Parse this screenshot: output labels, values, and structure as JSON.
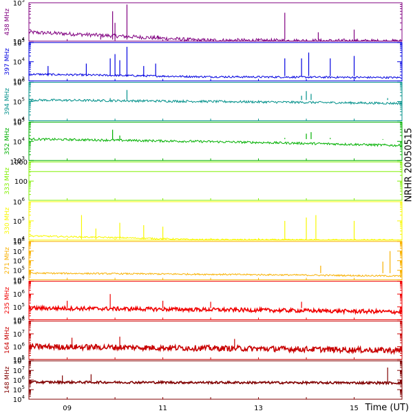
{
  "chart_data": {
    "type": "line",
    "xlabel": "Time (UT)",
    "side_label": "NRHR 20050515",
    "x_ticks": [
      "09",
      "11",
      "13",
      "15"
    ],
    "x_range": [
      8.2,
      16.0
    ],
    "panels": [
      {
        "label": "438 MHz",
        "color": "#800080",
        "y_scale": "log",
        "ylim": [
          10000,
          100000
        ],
        "y_ticks": [
          {
            "v": 100000,
            "base": "10",
            "exp": "5"
          },
          {
            "v": 10000,
            "base": "10",
            "exp": "4"
          }
        ],
        "baseline": 11000,
        "baseline_end": 10000,
        "noise": 0.05,
        "decay": 0.55,
        "spikes": [
          {
            "t": 9.95,
            "v": 60000
          },
          {
            "t": 10.25,
            "v": 90000
          },
          {
            "t": 10.0,
            "v": 30000
          },
          {
            "t": 9.7,
            "v": 14000
          },
          {
            "t": 10.9,
            "v": 14000
          },
          {
            "t": 13.55,
            "v": 55000
          },
          {
            "t": 14.25,
            "v": 17000
          },
          {
            "t": 15.0,
            "v": 20000
          }
        ]
      },
      {
        "label": "397 MHz",
        "color": "#0000e0",
        "y_scale": "log",
        "ylim": [
          1000,
          100000
        ],
        "y_ticks": [
          {
            "v": 100000,
            "base": "10",
            "exp": "5"
          },
          {
            "v": 10000,
            "base": "10",
            "exp": "4"
          },
          {
            "v": 1000,
            "base": "10",
            "exp": "3"
          }
        ],
        "baseline": 1800,
        "baseline_end": 1500,
        "noise": 0.05,
        "decay": 0.25,
        "spikes": [
          {
            "t": 8.6,
            "v": 6000
          },
          {
            "t": 9.4,
            "v": 8000
          },
          {
            "t": 9.9,
            "v": 15000
          },
          {
            "t": 10.0,
            "v": 25000
          },
          {
            "t": 10.1,
            "v": 12000
          },
          {
            "t": 10.25,
            "v": 60000
          },
          {
            "t": 10.6,
            "v": 6000
          },
          {
            "t": 10.85,
            "v": 8000
          },
          {
            "t": 13.55,
            "v": 15000
          },
          {
            "t": 13.9,
            "v": 15000
          },
          {
            "t": 14.05,
            "v": 30000
          },
          {
            "t": 14.5,
            "v": 15000
          },
          {
            "t": 15.0,
            "v": 20000
          }
        ]
      },
      {
        "label": "394 MHz",
        "color": "#00908a",
        "y_scale": "log",
        "ylim": [
          10000,
          1000000
        ],
        "y_ticks": [
          {
            "v": 1000000,
            "base": "10",
            "exp": "6"
          },
          {
            "v": 100000,
            "base": "10",
            "exp": "5"
          },
          {
            "v": 10000,
            "base": "10",
            "exp": "4"
          }
        ],
        "baseline": 120000,
        "baseline_end": 80000,
        "noise": 0.06,
        "decay": 0,
        "spikes": [
          {
            "t": 9.9,
            "v": 150000
          },
          {
            "t": 10.25,
            "v": 400000
          },
          {
            "t": 13.9,
            "v": 200000
          },
          {
            "t": 14.0,
            "v": 350000
          },
          {
            "t": 14.1,
            "v": 250000
          },
          {
            "t": 15.7,
            "v": 150000
          }
        ]
      },
      {
        "label": "352 MHz",
        "color": "#00b000",
        "y_scale": "log",
        "ylim": [
          1000,
          100000
        ],
        "y_ticks": [
          {
            "v": 100000,
            "base": "10",
            "exp": "5"
          },
          {
            "v": 10000,
            "base": "10",
            "exp": "4"
          },
          {
            "v": 1000,
            "base": "10",
            "exp": "3"
          }
        ],
        "baseline": 13000,
        "baseline_end": 6000,
        "noise": 0.06,
        "decay": 0,
        "spikes": [
          {
            "t": 9.95,
            "v": 40000
          },
          {
            "t": 10.1,
            "v": 20000
          },
          {
            "t": 13.55,
            "v": 15000
          },
          {
            "t": 14.0,
            "v": 25000
          },
          {
            "t": 14.1,
            "v": 30000
          },
          {
            "t": 14.5,
            "v": 15000
          },
          {
            "t": 15.6,
            "v": 12000
          }
        ]
      },
      {
        "label": "333 MHz",
        "color": "#80f000",
        "y_scale": "log",
        "ylim": [
          10,
          1000
        ],
        "y_ticks": [
          {
            "v": 1000,
            "base": "1000",
            "exp": ""
          },
          {
            "v": 100,
            "base": "100",
            "exp": ""
          }
        ],
        "baseline": 316,
        "baseline_end": 316,
        "noise": 0,
        "decay": 0,
        "spikes": []
      },
      {
        "label": "330 MHz",
        "color": "#f8f800",
        "y_scale": "log",
        "ylim": [
          10000,
          1000000
        ],
        "y_ticks": [
          {
            "v": 1000000,
            "base": "10",
            "exp": "6"
          },
          {
            "v": 100000,
            "base": "10",
            "exp": "5"
          },
          {
            "v": 10000,
            "base": "10",
            "exp": "4"
          }
        ],
        "baseline": 11000,
        "baseline_end": 10000,
        "noise": 0.04,
        "decay": 0.5,
        "spikes": [
          {
            "t": 9.3,
            "v": 200000
          },
          {
            "t": 9.6,
            "v": 40000
          },
          {
            "t": 10.1,
            "v": 80000
          },
          {
            "t": 10.6,
            "v": 60000
          },
          {
            "t": 11.0,
            "v": 50000
          },
          {
            "t": 13.55,
            "v": 100000
          },
          {
            "t": 14.0,
            "v": 150000
          },
          {
            "t": 14.2,
            "v": 200000
          },
          {
            "t": 15.0,
            "v": 100000
          }
        ]
      },
      {
        "label": "271 MHz",
        "color": "#f8b000",
        "y_scale": "log",
        "ylim": [
          10000,
          100000000
        ],
        "y_ticks": [
          {
            "v": 100000000,
            "base": "10",
            "exp": "8"
          },
          {
            "v": 10000000,
            "base": "10",
            "exp": "7"
          },
          {
            "v": 1000000,
            "base": "10",
            "exp": "6"
          },
          {
            "v": 100000,
            "base": "10",
            "exp": "5"
          },
          {
            "v": 10000,
            "base": "10",
            "exp": "4"
          }
        ],
        "baseline": 50000,
        "baseline_end": 25000,
        "noise": 0.08,
        "decay": 0,
        "spikes": [
          {
            "t": 14.3,
            "v": 300000
          },
          {
            "t": 15.6,
            "v": 800000
          },
          {
            "t": 15.75,
            "v": 10000000
          }
        ]
      },
      {
        "label": "235 MHz",
        "color": "#f00000",
        "y_scale": "log",
        "ylim": [
          10000,
          10000000
        ],
        "y_ticks": [
          {
            "v": 10000000,
            "base": "10",
            "exp": "7"
          },
          {
            "v": 1000000,
            "base": "10",
            "exp": "6"
          },
          {
            "v": 100000,
            "base": "10",
            "exp": "5"
          },
          {
            "v": 10000,
            "base": "10",
            "exp": "4"
          }
        ],
        "baseline": 80000,
        "baseline_end": 40000,
        "noise": 0.15,
        "decay": 0,
        "spikes": [
          {
            "t": 9.0,
            "v": 300000
          },
          {
            "t": 9.9,
            "v": 1000000
          },
          {
            "t": 11.0,
            "v": 300000
          },
          {
            "t": 12.0,
            "v": 250000
          },
          {
            "t": 13.9,
            "v": 250000
          }
        ]
      },
      {
        "label": "164 MHz",
        "color": "#c80000",
        "y_scale": "log",
        "ylim": [
          100000,
          100000000
        ],
        "y_ticks": [
          {
            "v": 100000000,
            "base": "10",
            "exp": "8"
          },
          {
            "v": 10000000,
            "base": "10",
            "exp": "7"
          },
          {
            "v": 1000000,
            "base": "10",
            "exp": "6"
          },
          {
            "v": 100000,
            "base": "10",
            "exp": "5"
          }
        ],
        "baseline": 1000000,
        "baseline_end": 500000,
        "noise": 0.22,
        "decay": 0,
        "spikes": [
          {
            "t": 9.1,
            "v": 5000000
          },
          {
            "t": 10.1,
            "v": 6000000
          },
          {
            "t": 12.5,
            "v": 4000000
          }
        ]
      },
      {
        "label": "148 MHz",
        "color": "#800000",
        "y_scale": "log",
        "ylim": [
          10000,
          100000000
        ],
        "y_ticks": [
          {
            "v": 100000000,
            "base": "10",
            "exp": "8"
          },
          {
            "v": 10000000,
            "base": "10",
            "exp": "7"
          },
          {
            "v": 1000000,
            "base": "10",
            "exp": "6"
          },
          {
            "v": 100000,
            "base": "10",
            "exp": "5"
          },
          {
            "v": 10000,
            "base": "10",
            "exp": "4"
          }
        ],
        "baseline": 600000,
        "baseline_end": 500000,
        "noise": 0.12,
        "decay": 0,
        "spikes": [
          {
            "t": 8.9,
            "v": 3000000
          },
          {
            "t": 9.5,
            "v": 4000000
          },
          {
            "t": 15.7,
            "v": 20000000
          }
        ]
      }
    ]
  }
}
